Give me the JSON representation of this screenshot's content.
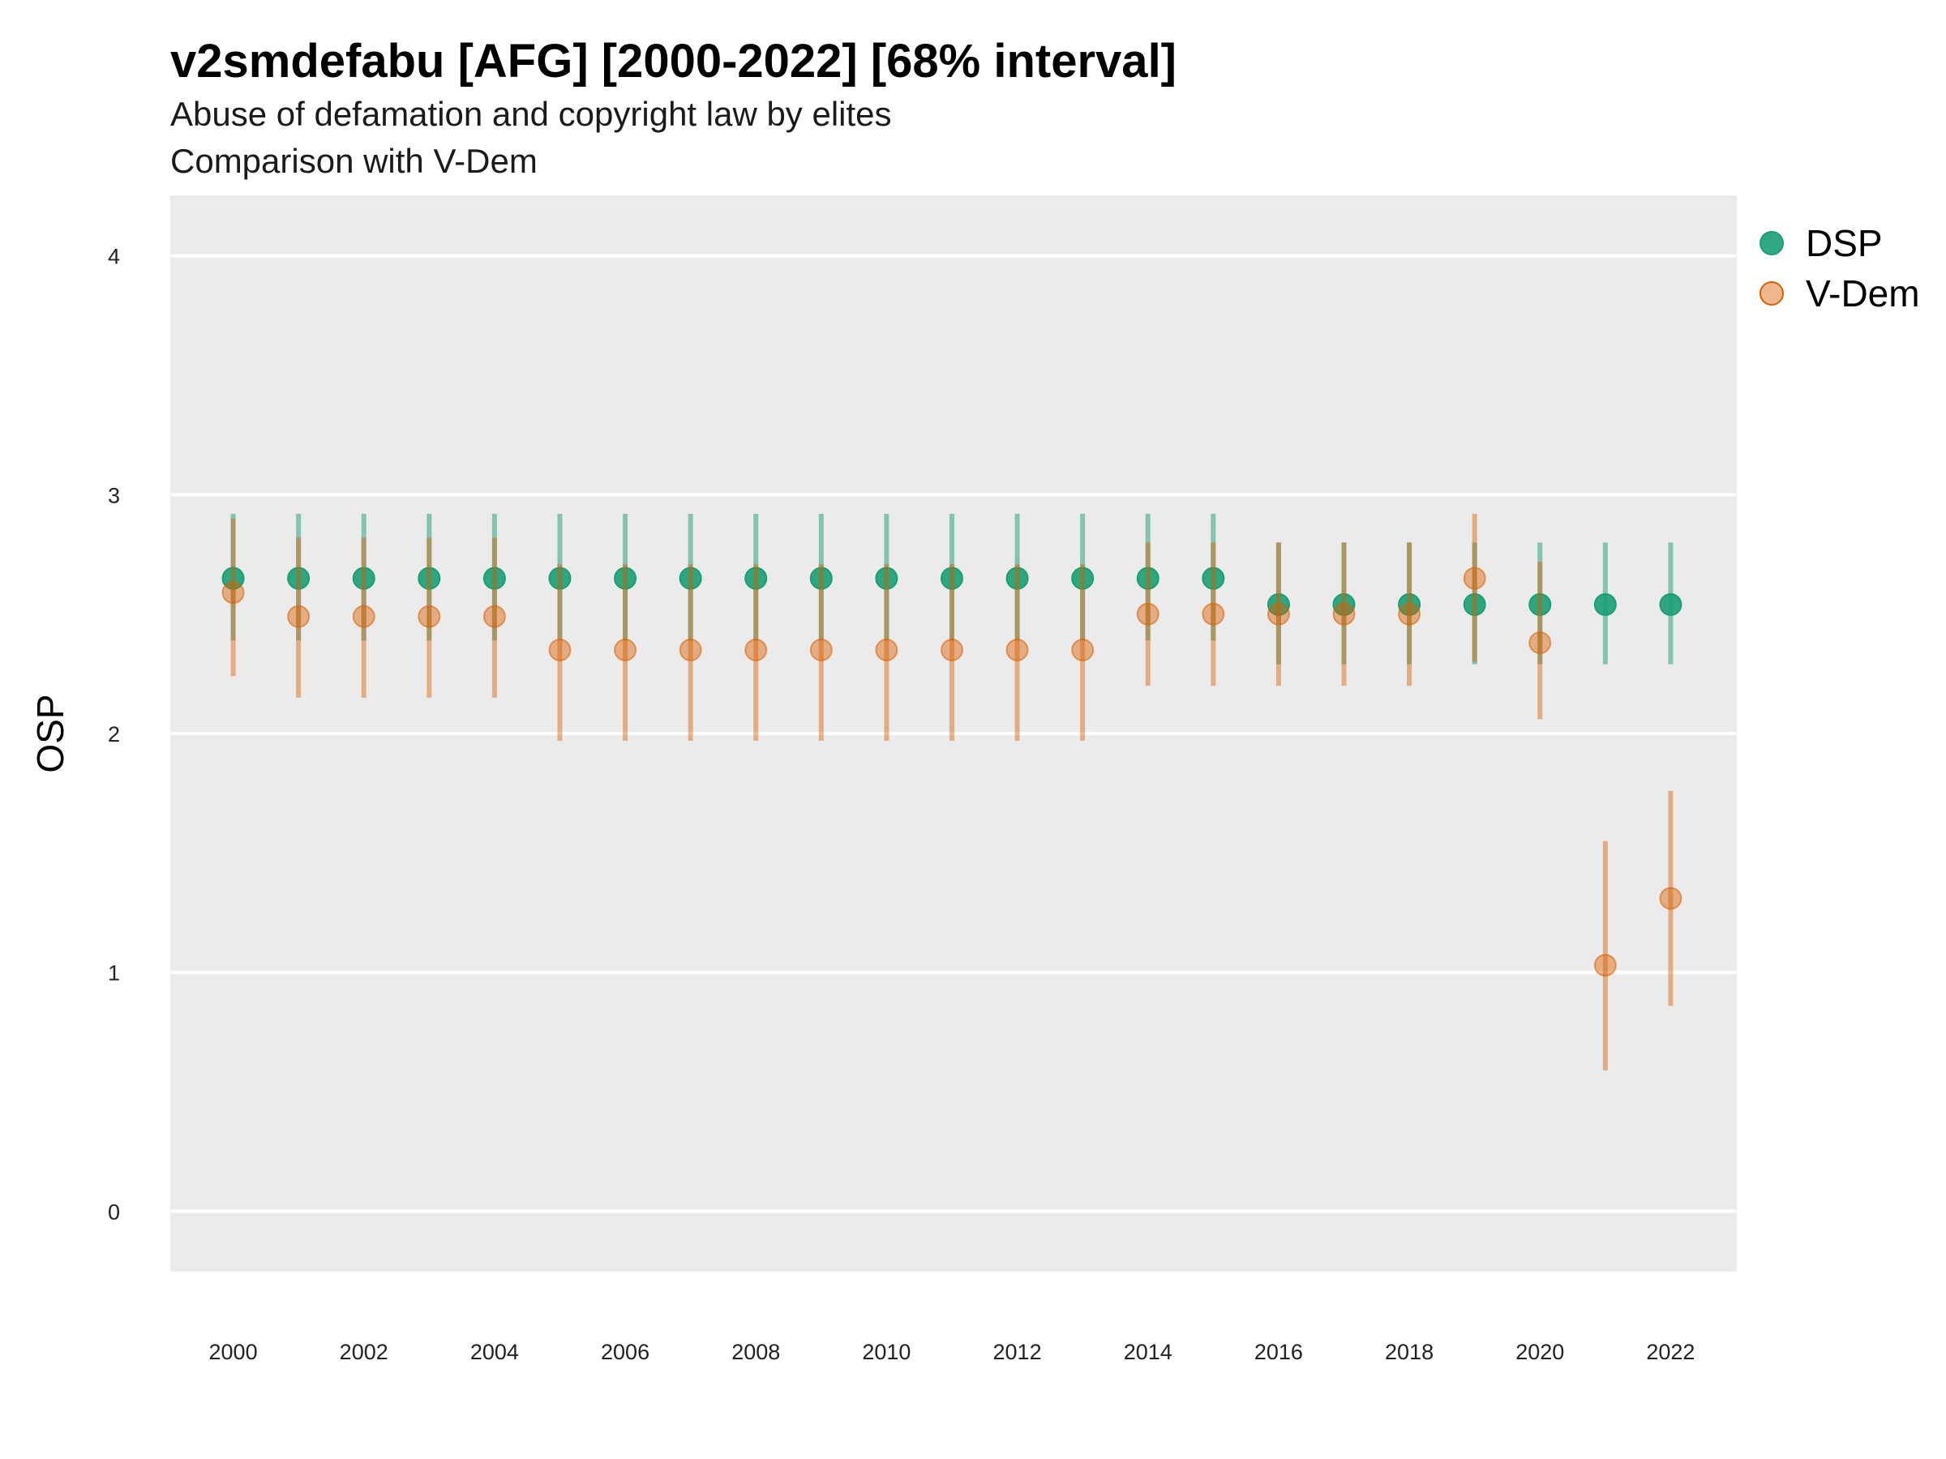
{
  "chart_data": {
    "type": "scatter",
    "title": "v2smdefabu [AFG] [2000-2022] [68% interval]",
    "subtitle_lines": [
      "Abuse of defamation and copyright law by elites",
      "Comparison with V-Dem"
    ],
    "ylabel": "OSP",
    "xlabel": "",
    "ylim": [
      -0.25,
      4.25
    ],
    "xlim": [
      1999.05,
      2023.0
    ],
    "yticks": [
      0,
      1,
      2,
      3,
      4
    ],
    "xticks": [
      2000,
      2002,
      2004,
      2006,
      2008,
      2010,
      2012,
      2014,
      2016,
      2018,
      2020,
      2022
    ],
    "grid": true,
    "legend_position": "right-top",
    "x": [
      2000,
      2001,
      2002,
      2003,
      2004,
      2005,
      2006,
      2007,
      2008,
      2009,
      2010,
      2011,
      2012,
      2013,
      2014,
      2015,
      2016,
      2017,
      2018,
      2019,
      2020,
      2021,
      2022
    ],
    "series": [
      {
        "name": "DSP",
        "color": "#1b9e77",
        "values": [
          2.65,
          2.65,
          2.65,
          2.65,
          2.65,
          2.65,
          2.65,
          2.65,
          2.65,
          2.65,
          2.65,
          2.65,
          2.65,
          2.65,
          2.65,
          2.65,
          2.54,
          2.54,
          2.54,
          2.54,
          2.54,
          2.54,
          2.54
        ],
        "lower": [
          2.39,
          2.39,
          2.39,
          2.39,
          2.39,
          2.39,
          2.39,
          2.39,
          2.39,
          2.39,
          2.39,
          2.39,
          2.39,
          2.39,
          2.39,
          2.39,
          2.29,
          2.29,
          2.29,
          2.29,
          2.29,
          2.29,
          2.29
        ],
        "upper": [
          2.92,
          2.92,
          2.92,
          2.92,
          2.92,
          2.92,
          2.92,
          2.92,
          2.92,
          2.92,
          2.92,
          2.92,
          2.92,
          2.92,
          2.92,
          2.92,
          2.8,
          2.8,
          2.8,
          2.8,
          2.8,
          2.8,
          2.8
        ]
      },
      {
        "name": "V-Dem",
        "color": "#d95f02",
        "values": [
          2.59,
          2.49,
          2.49,
          2.49,
          2.49,
          2.35,
          2.35,
          2.35,
          2.35,
          2.35,
          2.35,
          2.35,
          2.35,
          2.35,
          2.5,
          2.5,
          2.5,
          2.5,
          2.5,
          2.65,
          2.38,
          1.03,
          1.31
        ],
        "lower": [
          2.24,
          2.15,
          2.15,
          2.15,
          2.15,
          1.97,
          1.97,
          1.97,
          1.97,
          1.97,
          1.97,
          1.97,
          1.97,
          1.97,
          2.2,
          2.2,
          2.2,
          2.2,
          2.2,
          2.3,
          2.06,
          0.59,
          0.86
        ],
        "upper": [
          2.9,
          2.82,
          2.82,
          2.82,
          2.82,
          2.71,
          2.71,
          2.71,
          2.71,
          2.71,
          2.71,
          2.71,
          2.71,
          2.71,
          2.8,
          2.8,
          2.8,
          2.8,
          2.8,
          2.92,
          2.72,
          1.55,
          1.76
        ]
      }
    ]
  }
}
